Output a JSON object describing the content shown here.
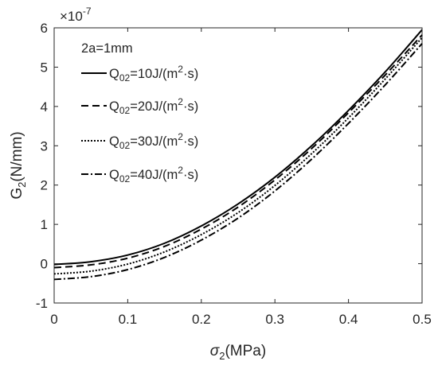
{
  "chart_data": {
    "type": "line",
    "xlabel": "σ2(MPa)",
    "ylabel": "G2(N/mm)",
    "y_multiplier": "×10-7",
    "xlim": [
      0,
      0.5
    ],
    "ylim": [
      -1,
      6
    ],
    "xticks": [
      0,
      0.1,
      0.2,
      0.3,
      0.4,
      0.5
    ],
    "yticks": [
      -1,
      0,
      1,
      2,
      3,
      4,
      5,
      6
    ],
    "grid": false,
    "legend_placement": "top-left",
    "legend_title": "2a=1mm",
    "series": [
      {
        "name": "Q02=10J/(m2·s)",
        "dash": "solid",
        "x": [
          0,
          0.05,
          0.1,
          0.15,
          0.2,
          0.25,
          0.3,
          0.35,
          0.4,
          0.45,
          0.5
        ],
        "y": [
          -0.02,
          0.05,
          0.22,
          0.52,
          0.96,
          1.52,
          2.2,
          3.0,
          3.9,
          4.88,
          5.95
        ]
      },
      {
        "name": "Q02=20J/(m2·s)",
        "dash": "dashed",
        "x": [
          0,
          0.05,
          0.1,
          0.15,
          0.2,
          0.25,
          0.3,
          0.35,
          0.4,
          0.45,
          0.5
        ],
        "y": [
          -0.1,
          -0.03,
          0.14,
          0.44,
          0.88,
          1.44,
          2.13,
          2.93,
          3.84,
          4.8,
          5.82
        ]
      },
      {
        "name": "Q02=30J/(m2·s)",
        "dash": "dotted",
        "x": [
          0,
          0.05,
          0.1,
          0.15,
          0.2,
          0.25,
          0.3,
          0.35,
          0.4,
          0.45,
          0.5
        ],
        "y": [
          -0.26,
          -0.19,
          -0.01,
          0.3,
          0.74,
          1.3,
          1.99,
          2.8,
          3.71,
          4.7,
          5.75
        ]
      },
      {
        "name": "Q02=40J/(m2·s)",
        "dash": "dash-dot",
        "x": [
          0,
          0.05,
          0.1,
          0.15,
          0.2,
          0.25,
          0.3,
          0.35,
          0.4,
          0.45,
          0.5
        ],
        "y": [
          -0.4,
          -0.33,
          -0.15,
          0.16,
          0.6,
          1.16,
          1.85,
          2.66,
          3.57,
          4.55,
          5.6
        ]
      }
    ]
  }
}
